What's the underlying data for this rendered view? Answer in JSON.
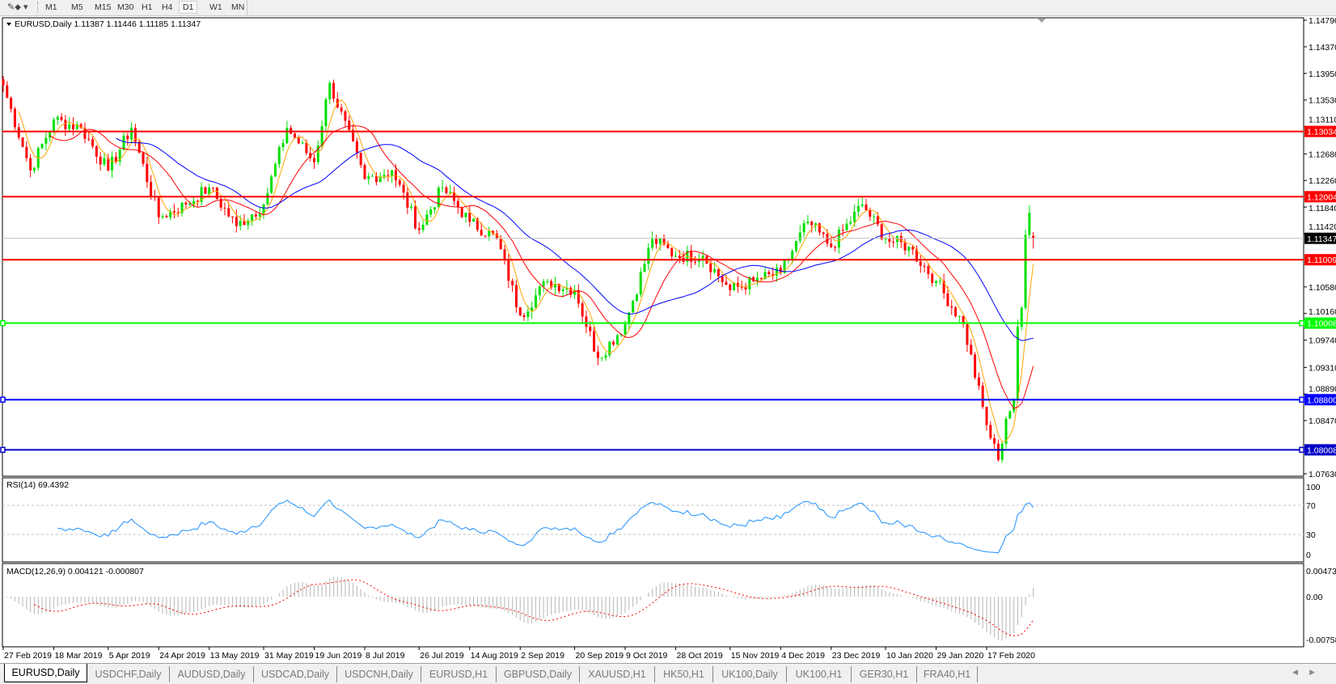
{
  "toolbar": {
    "tool_icon": "line-studies-icon",
    "timeframes": [
      {
        "label": "M1"
      },
      {
        "label": "M5"
      },
      {
        "label": "M15"
      },
      {
        "label": "M30"
      },
      {
        "label": "H1"
      },
      {
        "label": "H4"
      },
      {
        "label": "D1",
        "active": true
      },
      {
        "label": "W1"
      },
      {
        "label": "MN"
      }
    ]
  },
  "chart": {
    "header": "EURUSD,Daily  1.11387 1.11446 1.11185 1.11347",
    "current_price": "1.11347",
    "levels": [
      {
        "price": 1.13034,
        "label": "1.13034",
        "color": "#ff0000"
      },
      {
        "price": 1.12004,
        "label": "1.12004",
        "color": "#ff0000"
      },
      {
        "price": 1.11009,
        "label": "1.11009",
        "color": "#ff0000"
      },
      {
        "price": 1.10008,
        "label": "1.10008",
        "color": "#00ff00"
      },
      {
        "price": 1.088,
        "label": "1.08800",
        "color": "#0000ff"
      },
      {
        "price": 1.08008,
        "label": "1.08008",
        "color": "#0000c8"
      }
    ],
    "colors": {
      "bull": "#00e000",
      "bear": "#ff0000",
      "ma_fast": "#ffa500",
      "ma_mid": "#ff0000",
      "ma_slow": "#0000ff",
      "rsi": "#1e90ff",
      "macd_hist": "#c0c0c0",
      "macd_signal": "#ff0000"
    }
  },
  "chart_data": {
    "type": "candlestick",
    "symbol": "EURUSD",
    "timeframe": "Daily",
    "last_bar": {
      "open": 1.11387,
      "high": 1.11446,
      "low": 1.11185,
      "close": 1.11347
    },
    "ylim": [
      1.0763,
      1.1479
    ],
    "y_ticks": [
      "1.14790",
      "1.14370",
      "1.13950",
      "1.13530",
      "1.13110",
      "1.12680",
      "1.12260",
      "1.11840",
      "1.11420",
      "1.10580",
      "1.10160",
      "1.09740",
      "1.09310",
      "1.08890",
      "1.08470",
      "1.07630"
    ],
    "x_ticks": [
      "27 Feb 2019",
      "18 Mar 2019",
      "5 Apr 2019",
      "24 Apr 2019",
      "13 May 2019",
      "31 May 2019",
      "19 Jun 2019",
      "8 Jul 2019",
      "26 Jul 2019",
      "14 Aug 2019",
      "2 Sep 2019",
      "20 Sep 2019",
      "9 Oct 2019",
      "28 Oct 2019",
      "15 Nov 2019",
      "4 Dec 2019",
      "23 Dec 2019",
      "10 Jan 2020",
      "29 Jan 2020",
      "17 Feb 2020"
    ],
    "x_tick_dates": [
      "2019-02-27",
      "2019-03-18",
      "2019-04-05",
      "2019-04-24",
      "2019-05-13",
      "2019-05-31",
      "2019-06-19",
      "2019-07-08",
      "2019-07-26",
      "2019-08-14",
      "2019-09-02",
      "2019-09-20",
      "2019-10-09",
      "2019-10-28",
      "2019-11-15",
      "2019-12-04",
      "2019-12-23",
      "2020-01-10",
      "2020-01-29",
      "2020-02-17"
    ],
    "close_path": [
      [
        "2019-02-27",
        1.1376
      ],
      [
        "2019-03-08",
        1.1242
      ],
      [
        "2019-03-18",
        1.1322
      ],
      [
        "2019-03-27",
        1.1309
      ],
      [
        "2019-04-05",
        1.1242
      ],
      [
        "2019-04-15",
        1.1309
      ],
      [
        "2019-04-24",
        1.1168
      ],
      [
        "2019-05-03",
        1.1188
      ],
      [
        "2019-05-13",
        1.1215
      ],
      [
        "2019-05-22",
        1.1154
      ],
      [
        "2019-05-31",
        1.1188
      ],
      [
        "2019-06-10",
        1.1309
      ],
      [
        "2019-06-19",
        1.1255
      ],
      [
        "2019-06-25",
        1.138
      ],
      [
        "2019-07-08",
        1.1228
      ],
      [
        "2019-07-17",
        1.1242
      ],
      [
        "2019-07-26",
        1.1148
      ],
      [
        "2019-08-05",
        1.1215
      ],
      [
        "2019-08-14",
        1.1161
      ],
      [
        "2019-08-23",
        1.1134
      ],
      [
        "2019-09-02",
        1.1013
      ],
      [
        "2019-09-11",
        1.1067
      ],
      [
        "2019-09-20",
        1.1053
      ],
      [
        "2019-09-30",
        1.0946
      ],
      [
        "2019-10-09",
        1.0999
      ],
      [
        "2019-10-18",
        1.1134
      ],
      [
        "2019-10-28",
        1.1107
      ],
      [
        "2019-11-06",
        1.1107
      ],
      [
        "2019-11-15",
        1.1053
      ],
      [
        "2019-11-25",
        1.1067
      ],
      [
        "2019-12-04",
        1.108
      ],
      [
        "2019-12-13",
        1.1161
      ],
      [
        "2019-12-23",
        1.1121
      ],
      [
        "2020-01-02",
        1.1188
      ],
      [
        "2020-01-10",
        1.1134
      ],
      [
        "2020-01-20",
        1.1121
      ],
      [
        "2020-01-29",
        1.1067
      ],
      [
        "2020-02-07",
        1.0999
      ],
      [
        "2020-02-17",
        1.084
      ],
      [
        "2020-02-20",
        1.0785
      ],
      [
        "2020-02-24",
        1.085
      ],
      [
        "2020-02-26",
        1.088
      ],
      [
        "2020-02-27",
        1.0995
      ],
      [
        "2020-02-28",
        1.1025
      ],
      [
        "2020-03-02",
        1.114
      ],
      [
        "2020-03-03",
        1.1175
      ],
      [
        "2020-03-04",
        1.11347
      ]
    ],
    "moving_averages": [
      "fast (orange)",
      "medium (red)",
      "slow (blue)"
    ],
    "rsi": {
      "label": "RSI(14) 69.4392",
      "period": 14,
      "levels": [
        70,
        30
      ],
      "ylim": [
        0,
        100
      ],
      "y_ticks": [
        "100",
        "70",
        "30",
        "0"
      ]
    },
    "macd": {
      "label": "MACD(12,26,9) 0.004121 -0.000807",
      "fast": 12,
      "slow": 26,
      "signal": 9,
      "ylim": [
        -0.00758,
        0.004738
      ],
      "y_ticks": [
        "0.004738",
        "0.00",
        "-0.00758"
      ]
    }
  },
  "tabs": [
    {
      "label": "EURUSD,Daily",
      "active": true
    },
    {
      "label": "USDCHF,Daily"
    },
    {
      "label": "AUDUSD,Daily"
    },
    {
      "label": "USDCAD,Daily"
    },
    {
      "label": "USDCNH,Daily"
    },
    {
      "label": "EURUSD,H1"
    },
    {
      "label": "GBPUSD,Daily"
    },
    {
      "label": "XAUUSD,H1"
    },
    {
      "label": "HK50,H1"
    },
    {
      "label": "UK100,Daily"
    },
    {
      "label": "UK100,H1"
    },
    {
      "label": "GER30,H1"
    },
    {
      "label": "FRA40,H1"
    }
  ]
}
